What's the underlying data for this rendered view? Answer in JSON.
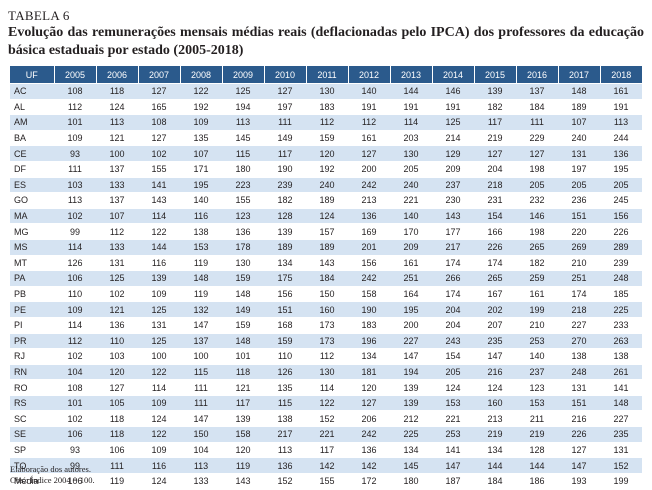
{
  "table_label": "TABELA 6",
  "title": "Evolução das remunerações mensais médias reais (deflacionadas pelo IPCA) dos professores da educação básica estaduais por estado (2005-2018)",
  "columns": [
    "UF",
    "2005",
    "2006",
    "2007",
    "2008",
    "2009",
    "2010",
    "2011",
    "2012",
    "2013",
    "2014",
    "2015",
    "2016",
    "2017",
    "2018"
  ],
  "rows": [
    [
      "AC",
      "108",
      "118",
      "127",
      "122",
      "125",
      "127",
      "130",
      "140",
      "144",
      "146",
      "139",
      "137",
      "148",
      "161"
    ],
    [
      "AL",
      "112",
      "124",
      "165",
      "192",
      "194",
      "197",
      "183",
      "191",
      "191",
      "191",
      "182",
      "184",
      "189",
      "191"
    ],
    [
      "AM",
      "101",
      "113",
      "108",
      "109",
      "113",
      "111",
      "112",
      "112",
      "114",
      "125",
      "117",
      "111",
      "107",
      "113"
    ],
    [
      "BA",
      "109",
      "121",
      "127",
      "135",
      "145",
      "149",
      "159",
      "161",
      "203",
      "214",
      "219",
      "229",
      "240",
      "244"
    ],
    [
      "CE",
      "93",
      "100",
      "102",
      "107",
      "115",
      "117",
      "120",
      "127",
      "130",
      "129",
      "127",
      "127",
      "131",
      "136"
    ],
    [
      "DF",
      "111",
      "137",
      "155",
      "171",
      "180",
      "190",
      "192",
      "200",
      "205",
      "209",
      "204",
      "198",
      "197",
      "195"
    ],
    [
      "ES",
      "103",
      "133",
      "141",
      "195",
      "223",
      "239",
      "240",
      "242",
      "240",
      "237",
      "218",
      "205",
      "205",
      "205"
    ],
    [
      "GO",
      "113",
      "137",
      "143",
      "140",
      "155",
      "182",
      "189",
      "213",
      "221",
      "230",
      "231",
      "232",
      "236",
      "245"
    ],
    [
      "MA",
      "102",
      "107",
      "114",
      "116",
      "123",
      "128",
      "124",
      "136",
      "140",
      "143",
      "154",
      "146",
      "151",
      "156"
    ],
    [
      "MG",
      "99",
      "112",
      "122",
      "138",
      "136",
      "139",
      "157",
      "169",
      "170",
      "177",
      "166",
      "198",
      "220",
      "226"
    ],
    [
      "MS",
      "114",
      "133",
      "144",
      "153",
      "178",
      "189",
      "189",
      "201",
      "209",
      "217",
      "226",
      "265",
      "269",
      "289"
    ],
    [
      "MT",
      "126",
      "131",
      "116",
      "119",
      "130",
      "134",
      "143",
      "156",
      "161",
      "174",
      "174",
      "182",
      "210",
      "239"
    ],
    [
      "PA",
      "106",
      "125",
      "139",
      "148",
      "159",
      "175",
      "184",
      "242",
      "251",
      "266",
      "265",
      "259",
      "251",
      "248"
    ],
    [
      "PB",
      "110",
      "102",
      "109",
      "119",
      "148",
      "156",
      "150",
      "158",
      "164",
      "174",
      "167",
      "161",
      "174",
      "185"
    ],
    [
      "PE",
      "109",
      "121",
      "125",
      "132",
      "149",
      "151",
      "160",
      "190",
      "195",
      "204",
      "202",
      "199",
      "218",
      "225"
    ],
    [
      "PI",
      "114",
      "136",
      "131",
      "147",
      "159",
      "168",
      "173",
      "183",
      "200",
      "204",
      "207",
      "210",
      "227",
      "233"
    ],
    [
      "PR",
      "112",
      "110",
      "125",
      "137",
      "148",
      "159",
      "173",
      "196",
      "227",
      "243",
      "235",
      "253",
      "270",
      "263"
    ],
    [
      "RJ",
      "102",
      "103",
      "100",
      "100",
      "101",
      "110",
      "112",
      "134",
      "147",
      "154",
      "147",
      "140",
      "138",
      "138"
    ],
    [
      "RN",
      "104",
      "120",
      "122",
      "115",
      "118",
      "126",
      "130",
      "181",
      "194",
      "205",
      "216",
      "237",
      "248",
      "261"
    ],
    [
      "RO",
      "108",
      "127",
      "114",
      "111",
      "121",
      "135",
      "114",
      "120",
      "139",
      "124",
      "124",
      "123",
      "131",
      "141"
    ],
    [
      "RS",
      "101",
      "105",
      "109",
      "111",
      "117",
      "115",
      "122",
      "127",
      "139",
      "153",
      "160",
      "153",
      "151",
      "148"
    ],
    [
      "SC",
      "102",
      "118",
      "124",
      "147",
      "139",
      "138",
      "152",
      "206",
      "212",
      "221",
      "213",
      "211",
      "216",
      "227"
    ],
    [
      "SE",
      "106",
      "118",
      "122",
      "150",
      "158",
      "217",
      "221",
      "242",
      "225",
      "253",
      "219",
      "219",
      "226",
      "235"
    ],
    [
      "SP",
      "93",
      "106",
      "109",
      "104",
      "120",
      "113",
      "117",
      "136",
      "134",
      "141",
      "134",
      "128",
      "127",
      "131"
    ],
    [
      "TO",
      "99",
      "111",
      "116",
      "113",
      "119",
      "136",
      "142",
      "142",
      "145",
      "147",
      "144",
      "144",
      "147",
      "152"
    ],
    [
      "Média",
      "106",
      "119",
      "124",
      "133",
      "143",
      "152",
      "155",
      "172",
      "180",
      "187",
      "184",
      "186",
      "193",
      "199"
    ]
  ],
  "notes": {
    "source": "Elaboração dos autores.",
    "obs": "Obs.: Índice 2004 = 100."
  },
  "colors": {
    "header_bg": "#2b5a8c",
    "stripe_bg": "#d5e3f2"
  }
}
